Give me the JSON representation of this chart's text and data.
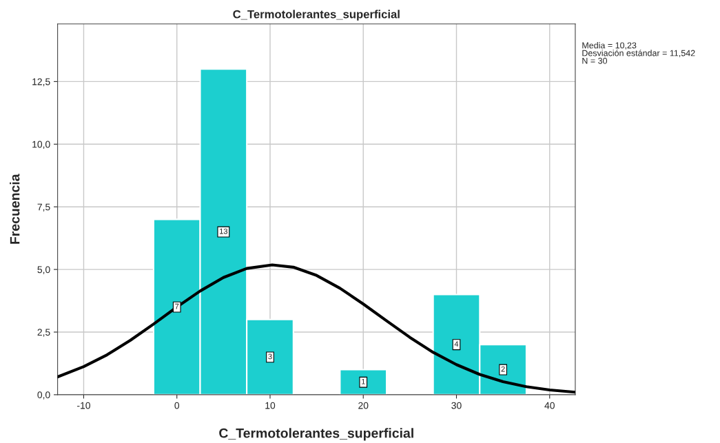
{
  "chart_data": {
    "type": "histogram",
    "title": "C_Termotolerantes_superficial",
    "xlabel": "C_Termotolerantes_superficial",
    "ylabel": "Frecuencia",
    "bins": [
      -2.5,
      2.5,
      7.5,
      12.5,
      17.5,
      22.5,
      27.5,
      32.5,
      37.5
    ],
    "values": [
      7,
      13,
      3,
      0,
      1,
      0,
      4,
      2
    ],
    "value_labels": [
      "7",
      "13",
      "3",
      null,
      "1",
      null,
      "4",
      "2"
    ],
    "color": "#1ccfcf",
    "series": [
      {
        "type": "line",
        "color": "#000000",
        "x": [
          -12.8,
          -10,
          -7.5,
          -5,
          -2.5,
          0,
          2.5,
          5,
          7.5,
          10.23,
          12.5,
          15,
          17.5,
          20,
          22.5,
          25,
          27.5,
          30,
          32.5,
          35,
          37.5,
          40,
          42.75
        ],
        "values": [
          0.71,
          1.12,
          1.59,
          2.17,
          2.82,
          3.5,
          4.14,
          4.68,
          5.04,
          5.18,
          5.09,
          4.76,
          4.25,
          3.62,
          2.95,
          2.29,
          1.69,
          1.2,
          0.81,
          0.52,
          0.32,
          0.19,
          0.1
        ]
      }
    ],
    "annotations": [
      "Media = 10,23\nDesviación estándar = 11,542\nN = 30"
    ],
    "xlim": [
      -12.8,
      42.75
    ],
    "ylim": [
      0,
      14.8
    ],
    "xticks": [
      -10,
      0,
      10,
      20,
      30,
      40
    ],
    "yticks": [
      {
        "value": 0,
        "label": "0,0"
      },
      {
        "value": 2.5,
        "label": "2,5"
      },
      {
        "value": 5,
        "label": "5,0"
      },
      {
        "value": 7.5,
        "label": "7,5"
      },
      {
        "value": 10,
        "label": "10,0"
      },
      {
        "value": 12.5,
        "label": "12,5"
      }
    ],
    "grid": true
  }
}
